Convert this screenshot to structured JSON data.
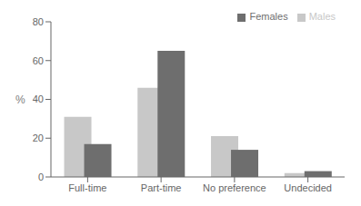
{
  "chart_data": {
    "type": "bar",
    "categories": [
      "Full-time",
      "Part-time",
      "No preference",
      "Undecided"
    ],
    "series": [
      {
        "name": "Males",
        "color": "#c8c8c8",
        "values": [
          31,
          46,
          21,
          2
        ]
      },
      {
        "name": "Females",
        "color": "#6e6e6e",
        "values": [
          17,
          65,
          14,
          3
        ]
      }
    ],
    "ylabel": "%",
    "ylim": [
      0,
      80
    ],
    "yticks": [
      0,
      20,
      40,
      60,
      80
    ],
    "grid": false,
    "legend": "upper right"
  }
}
